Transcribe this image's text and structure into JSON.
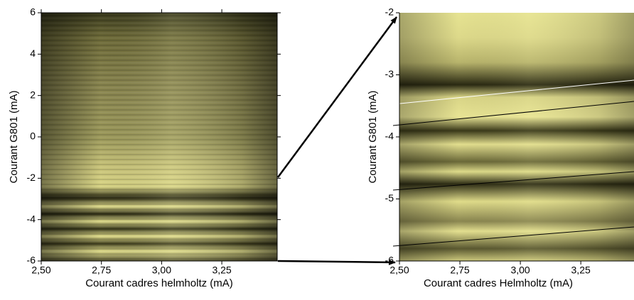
{
  "chart_data": [
    {
      "type": "heatmap",
      "xlabel": "Courant cadres helmholtz (mA)",
      "ylabel": "Courant G801 (mA)",
      "xlim": [
        2.5,
        3.48
      ],
      "xticks": [
        {
          "value": 2.5,
          "label": "2,50"
        },
        {
          "value": 2.75,
          "label": "2,75"
        },
        {
          "value": 3.0,
          "label": "3,00"
        },
        {
          "value": 3.25,
          "label": "3,25"
        }
      ],
      "ylim": [
        -6,
        6
      ],
      "yticks": [
        6,
        4,
        2,
        0,
        -2,
        -4,
        -6
      ]
    },
    {
      "type": "heatmap",
      "xlabel": "Courant cadres Helmholtz (mA)",
      "ylabel": "Courant G801 (mA)",
      "xlim": [
        2.5,
        3.47
      ],
      "xticks": [
        {
          "value": 2.5,
          "label": "2,50"
        },
        {
          "value": 2.75,
          "label": "2,75"
        },
        {
          "value": 3.0,
          "label": "3,00"
        },
        {
          "value": 3.25,
          "label": "3,25"
        }
      ],
      "ylim": [
        -6,
        -2
      ],
      "yticks": [
        -2,
        -3,
        -4,
        -5,
        -6
      ]
    }
  ]
}
